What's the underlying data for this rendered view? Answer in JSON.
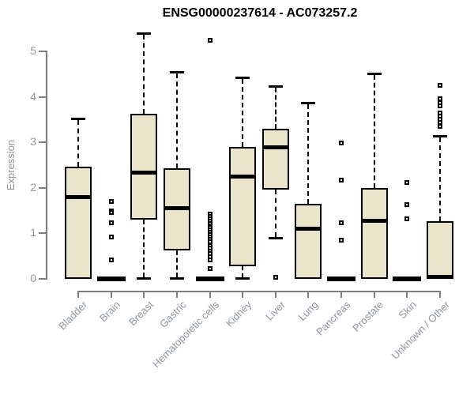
{
  "title": "ENSG00000237614 - AC073257.2",
  "y_axis": {
    "label": "Expression",
    "ticks": [
      "0",
      "1",
      "2",
      "3",
      "4",
      "5"
    ]
  },
  "colors": {
    "box_fill": "#EAE4CA",
    "box_stroke": "#000000",
    "axis": "#7D7D7D",
    "tick_label": "#8F959D",
    "title": "#000000"
  },
  "chart_data": {
    "type": "boxplot",
    "title": "ENSG00000237614 - AC073257.2",
    "xlabel": "",
    "ylabel": "Expression",
    "ylim": [
      0,
      5.5
    ],
    "grid": false,
    "categories": [
      "Bladder",
      "Brain",
      "Breast",
      "Gastric",
      "Hematopoietic cells",
      "Kidney",
      "Liver",
      "Lung",
      "Pancreas",
      "Prostate",
      "Skin",
      "Unknown / Other"
    ],
    "boxes": [
      {
        "label": "Bladder",
        "flat": false,
        "q1": 0,
        "median": 1.8,
        "q3": 2.47,
        "whisker_low": 0,
        "whisker_high": 3.53,
        "outliers": []
      },
      {
        "label": "Brain",
        "flat": true,
        "q1": 0,
        "median": 0,
        "q3": 0,
        "whisker_low": 0,
        "whisker_high": 0,
        "outliers": [
          1.7,
          1.5,
          1.45,
          1.24,
          0.92,
          0.41
        ]
      },
      {
        "label": "Breast",
        "flat": false,
        "q1": 1.31,
        "median": 2.34,
        "q3": 3.62,
        "whisker_low": 0,
        "whisker_high": 5.4,
        "outliers": []
      },
      {
        "label": "Gastric",
        "flat": false,
        "q1": 0.63,
        "median": 1.56,
        "q3": 2.43,
        "whisker_low": 0,
        "whisker_high": 4.55,
        "outliers": []
      },
      {
        "label": "Hematopoietic cells",
        "flat": true,
        "q1": 0,
        "median": 0,
        "q3": 0,
        "whisker_low": 0,
        "whisker_high": 0,
        "outliers": [
          5.24,
          1.42,
          1.37,
          1.32,
          1.27,
          1.22,
          1.17,
          1.12,
          1.07,
          1.02,
          0.97,
          0.92,
          0.87,
          0.82,
          0.73,
          0.67,
          0.61,
          0.55,
          0.48,
          0.42,
          0.23
        ]
      },
      {
        "label": "Kidney",
        "flat": false,
        "q1": 0.27,
        "median": 2.25,
        "q3": 2.9,
        "whisker_low": 0,
        "whisker_high": 4.43,
        "outliers": []
      },
      {
        "label": "Liver",
        "flat": false,
        "q1": 1.97,
        "median": 2.9,
        "q3": 3.3,
        "whisker_low": 0.89,
        "whisker_high": 4.24,
        "outliers": [
          0.03
        ]
      },
      {
        "label": "Lung",
        "flat": false,
        "q1": 0,
        "median": 1.11,
        "q3": 1.65,
        "whisker_low": 0,
        "whisker_high": 3.88,
        "outliers": []
      },
      {
        "label": "Pancreas",
        "flat": true,
        "q1": 0,
        "median": 0,
        "q3": 0,
        "whisker_low": 0,
        "whisker_high": 0,
        "outliers": [
          2.99,
          2.17,
          1.24,
          0.85
        ]
      },
      {
        "label": "Prostate",
        "flat": false,
        "q1": 0,
        "median": 1.28,
        "q3": 2.0,
        "whisker_low": 0,
        "whisker_high": 4.51,
        "outliers": []
      },
      {
        "label": "Skin",
        "flat": true,
        "q1": 0,
        "median": 0,
        "q3": 0,
        "whisker_low": 0,
        "whisker_high": 0,
        "outliers": [
          2.11,
          1.63,
          1.32
        ]
      },
      {
        "label": "Unknown / Other",
        "flat": false,
        "q1": 0,
        "median": 0.05,
        "q3": 1.26,
        "whisker_low": 0,
        "whisker_high": 3.15,
        "outliers": [
          4.25,
          3.95,
          3.88,
          3.81,
          3.65,
          3.57,
          3.5,
          3.43,
          3.35
        ]
      }
    ]
  }
}
